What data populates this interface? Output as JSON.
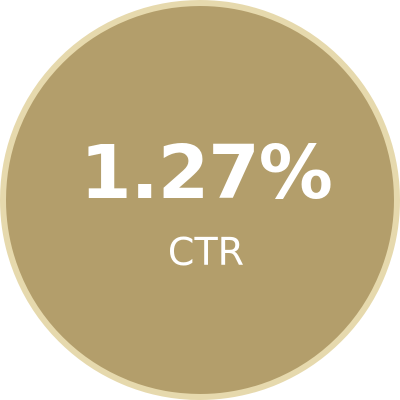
{
  "badge": {
    "value": "1.27%",
    "label": "CTR",
    "fill_color": "#b39e6b",
    "ring_color": "#e6d9ad",
    "text_color": "#ffffff"
  }
}
